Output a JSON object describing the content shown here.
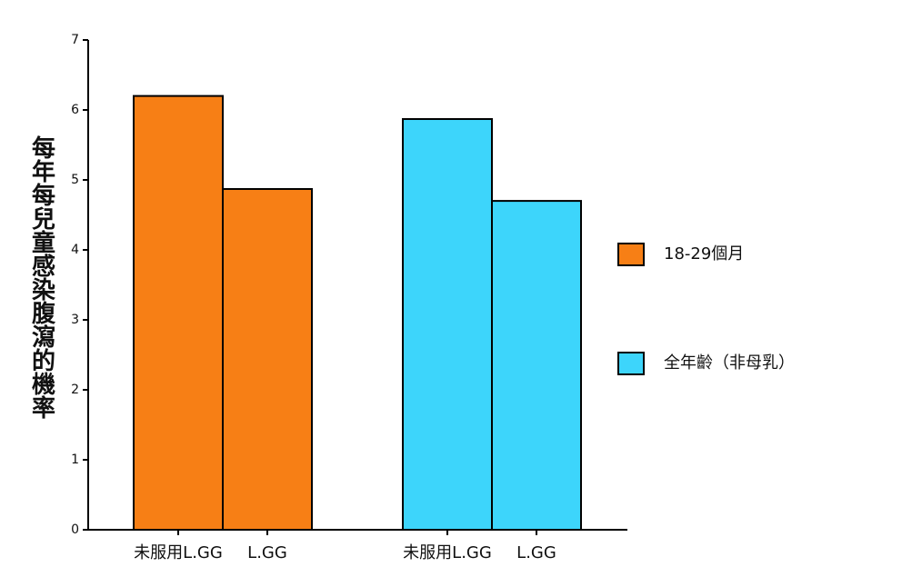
{
  "chart_data": {
    "type": "bar",
    "y_label": "每年每兒童感染腹瀉的機率",
    "categories": [
      "未服用L.GG",
      "L.GG",
      "未服用L.GG",
      "L.GG"
    ],
    "series": [
      {
        "name": "18-29個月",
        "color": "#f77f15",
        "values": [
          6.2,
          4.87,
          null,
          null
        ]
      },
      {
        "name": "全年齡（非母乳）",
        "color": "#3dd5fb",
        "values": [
          null,
          null,
          5.87,
          4.7
        ]
      }
    ],
    "ylim": [
      0,
      7
    ],
    "yticks": [
      0,
      1,
      2,
      3,
      4,
      5,
      6,
      7
    ],
    "legend": "right"
  }
}
